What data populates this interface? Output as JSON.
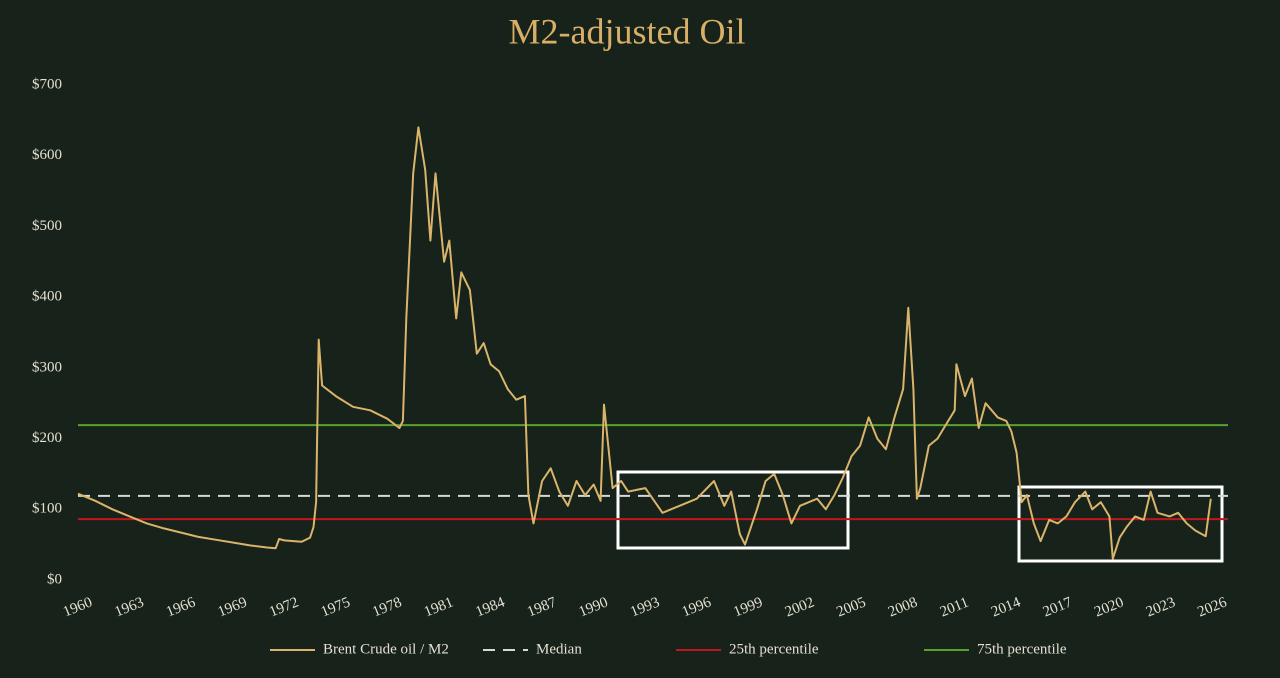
{
  "chart_data": {
    "type": "line",
    "title": "M2-adjusted Oil",
    "xlim": [
      1960,
      2026.9
    ],
    "xticks": [
      1960,
      1963,
      1966,
      1969,
      1972,
      1975,
      1978,
      1981,
      1984,
      1987,
      1990,
      1993,
      1996,
      1999,
      2002,
      2005,
      2008,
      2011,
      2014,
      2017,
      2020,
      2023,
      2026
    ],
    "ylim": [
      0,
      700
    ],
    "yticks": [
      {
        "value": 0,
        "label": "$0"
      },
      {
        "value": 100,
        "label": "$100"
      },
      {
        "value": 200,
        "label": "$200"
      },
      {
        "value": 300,
        "label": "$300"
      },
      {
        "value": 400,
        "label": "$400"
      },
      {
        "value": 500,
        "label": "$500"
      },
      {
        "value": 600,
        "label": "$600"
      },
      {
        "value": 700,
        "label": "$700"
      }
    ],
    "series": [
      {
        "name": "Brent Crude oil / M2",
        "color": "#d9b46a",
        "x": [
          1960,
          1961,
          1962,
          1963,
          1964,
          1965,
          1966,
          1967,
          1968,
          1969,
          1970,
          1971,
          1971.5,
          1971.7,
          1972,
          1973,
          1973.5,
          1973.7,
          1973.85,
          1974,
          1974.2,
          1975,
          1976,
          1977,
          1978,
          1978.7,
          1978.9,
          1979.1,
          1979.5,
          1979.8,
          1980.2,
          1980.5,
          1980.8,
          1981.3,
          1981.6,
          1982,
          1982.3,
          1982.8,
          1983.2,
          1983.6,
          1984,
          1984.5,
          1985,
          1985.5,
          1986,
          1986.2,
          1986.5,
          1987,
          1987.5,
          1988,
          1988.5,
          1989,
          1989.5,
          1990,
          1990.4,
          1990.6,
          1991.1,
          1991.6,
          1992,
          1993,
          1994,
          1995,
          1996,
          1997,
          1997.6,
          1998,
          1998.5,
          1998.8,
          1999.5,
          2000,
          2000.5,
          2001,
          2001.5,
          2002,
          2003,
          2003.5,
          2004,
          2004.5,
          2005,
          2005.5,
          2006,
          2006.5,
          2007,
          2007.5,
          2008,
          2008.3,
          2008.6,
          2008.8,
          2009,
          2009.5,
          2010,
          2010.5,
          2011,
          2011.1,
          2011.6,
          2012,
          2012.4,
          2012.8,
          2013.5,
          2014,
          2014.3,
          2014.6,
          2014.9,
          2015.2,
          2015.6,
          2016,
          2016.5,
          2017,
          2017.5,
          2018,
          2018.6,
          2019,
          2019.5,
          2020,
          2020.2,
          2020.6,
          2021,
          2021.5,
          2022,
          2022.4,
          2022.8,
          2023.5,
          2024,
          2024.5,
          2025,
          2025.6,
          2025.9
        ],
        "values": [
          122,
          112,
          100,
          90,
          80,
          73,
          67,
          61,
          57,
          53,
          49,
          46,
          45,
          58,
          56,
          54,
          60,
          75,
          110,
          340,
          275,
          260,
          245,
          240,
          228,
          215,
          225,
          370,
          575,
          640,
          580,
          480,
          575,
          450,
          480,
          370,
          435,
          410,
          320,
          335,
          305,
          295,
          270,
          255,
          260,
          120,
          80,
          140,
          158,
          125,
          105,
          140,
          120,
          135,
          112,
          248,
          130,
          140,
          125,
          130,
          95,
          105,
          115,
          140,
          105,
          125,
          65,
          50,
          100,
          140,
          150,
          120,
          80,
          105,
          115,
          100,
          120,
          145,
          175,
          190,
          230,
          200,
          185,
          230,
          270,
          385,
          270,
          115,
          130,
          190,
          200,
          220,
          240,
          305,
          260,
          285,
          215,
          250,
          230,
          225,
          210,
          180,
          110,
          120,
          80,
          55,
          85,
          80,
          90,
          110,
          125,
          100,
          110,
          90,
          30,
          60,
          75,
          90,
          85,
          125,
          95,
          90,
          95,
          80,
          70,
          62,
          115
        ]
      }
    ],
    "reference_lines": [
      {
        "name": "Median",
        "value": 119,
        "color": "#d8d8d8",
        "dash": true
      },
      {
        "name": "25th percentile",
        "value": 86,
        "color": "#c0161c",
        "dash": false
      },
      {
        "name": "75th percentile",
        "value": 219,
        "color": "#5aa02c",
        "dash": false
      }
    ]
  }
}
